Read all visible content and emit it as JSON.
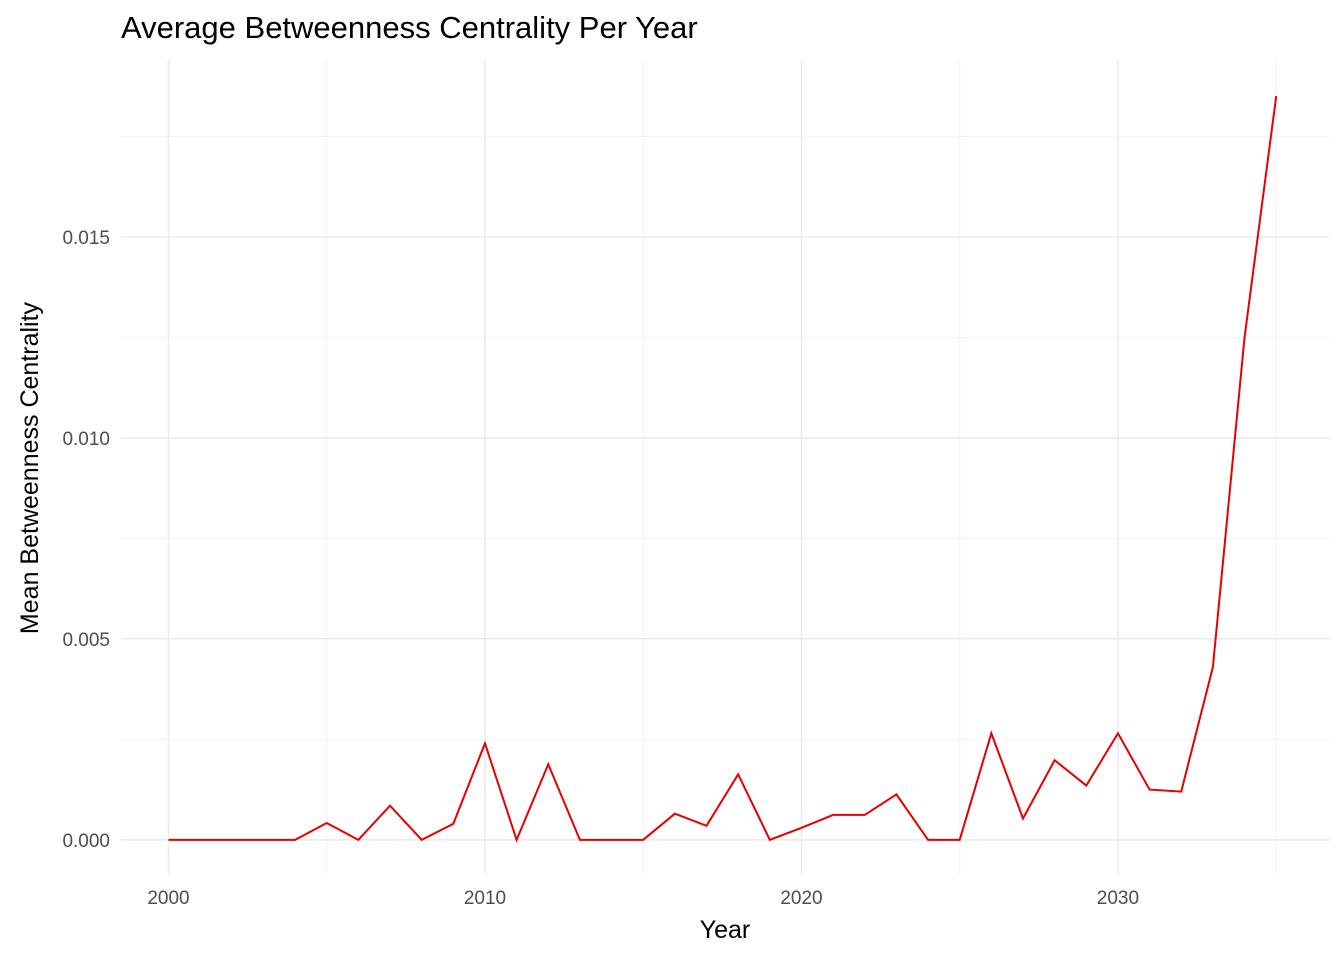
{
  "chart_data": {
    "type": "line",
    "title": "Average Betweenness Centrality Per Year",
    "xlabel": "Year",
    "ylabel": "Mean Betweenness Centrality",
    "xlim": [
      1998.5,
      2036.7
    ],
    "ylim": [
      -0.00085,
      0.0194
    ],
    "x_ticks": [
      2000,
      2010,
      2020,
      2030
    ],
    "x_tick_labels": [
      "2000",
      "2010",
      "2020",
      "2030"
    ],
    "y_ticks": [
      0.0,
      0.005,
      0.01,
      0.015
    ],
    "y_tick_labels": [
      "0.000",
      "0.005",
      "0.010",
      "0.015"
    ],
    "grid": true,
    "line_color": "#e60000",
    "series": [
      {
        "x": [
          2000,
          2001,
          2002,
          2003,
          2004,
          2005,
          2006,
          2007,
          2008,
          2009,
          2010,
          2011,
          2012,
          2013,
          2014,
          2015,
          2016,
          2017,
          2018,
          2019,
          2020,
          2021,
          2022,
          2023,
          2024,
          2025,
          2026,
          2027,
          2028,
          2029,
          2030,
          2031,
          2032,
          2033,
          2034,
          2035
        ],
        "values": [
          0.0,
          0.0,
          0.0,
          0.0,
          0.0,
          0.00042,
          0.0,
          0.00085,
          0.0,
          0.0004,
          0.0024,
          0.0,
          0.00188,
          0.0,
          0.0,
          0.0,
          0.00065,
          0.00035,
          0.00163,
          0.0,
          0.0003,
          0.00062,
          0.00062,
          0.00113,
          0.0,
          0.0,
          0.00265,
          0.00053,
          0.00198,
          0.00135,
          0.00265,
          0.00125,
          0.0012,
          0.0043,
          0.0125,
          0.0185
        ]
      }
    ]
  }
}
